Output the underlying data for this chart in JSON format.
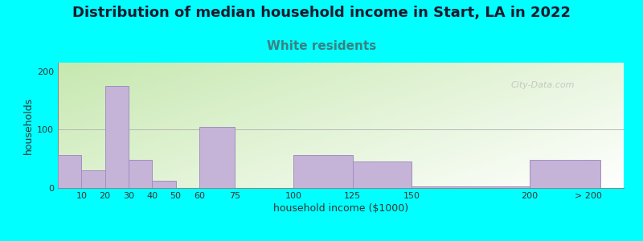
{
  "title": "Distribution of median household income in Start, LA in 2022",
  "subtitle": "White residents",
  "xlabel": "household income ($1000)",
  "ylabel": "households",
  "background_color": "#00ffff",
  "watermark": "City-Data.com",
  "yticks": [
    0,
    100,
    200
  ],
  "ylim": [
    0,
    215
  ],
  "categories": [
    "10",
    "20",
    "30",
    "40",
    "50",
    "60",
    "75",
    "100",
    "125",
    "150",
    "200",
    "> 200"
  ],
  "values": [
    57,
    30,
    175,
    48,
    13,
    0,
    105,
    0,
    57,
    45,
    3,
    48
  ],
  "title_fontsize": 13,
  "subtitle_fontsize": 11,
  "title_color": "#1a1a2e",
  "subtitle_color": "#3d8080",
  "axis_label_fontsize": 9,
  "tick_fontsize": 8,
  "bar_color": "#c5b3d8",
  "bar_edge_color": "#a090c0"
}
